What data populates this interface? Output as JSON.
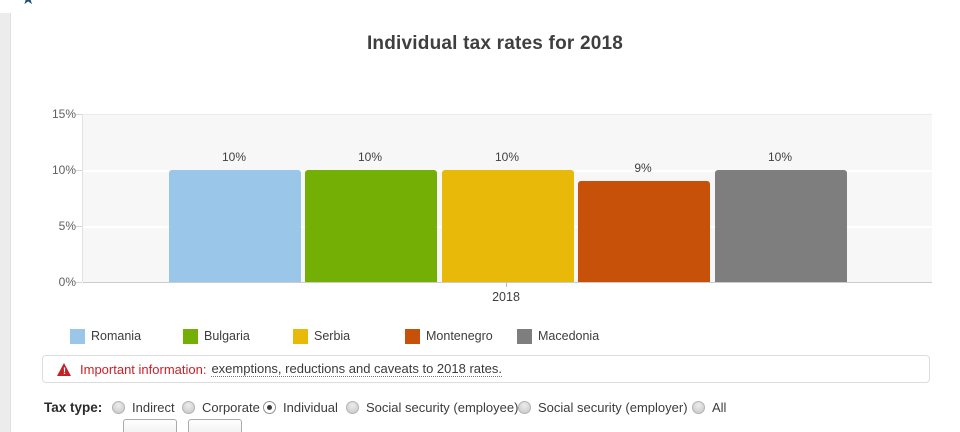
{
  "header": {
    "star_icon": "star"
  },
  "chart_data": {
    "type": "bar",
    "title": "Individual tax rates for 2018",
    "categories": [
      "2018"
    ],
    "series": [
      {
        "name": "Romania",
        "values": [
          10
        ],
        "label": "10%",
        "color": "#9ac6e9"
      },
      {
        "name": "Bulgaria",
        "values": [
          10
        ],
        "label": "10%",
        "color": "#74af06"
      },
      {
        "name": "Serbia",
        "values": [
          10
        ],
        "label": "10%",
        "color": "#e8b908"
      },
      {
        "name": "Montenegro",
        "values": [
          9
        ],
        "label": "9%",
        "color": "#c75108"
      },
      {
        "name": "Macedonia",
        "values": [
          10
        ],
        "label": "10%",
        "color": "#7e7e7e"
      }
    ],
    "ylim": [
      0,
      15
    ],
    "yticks": [
      {
        "value": 0,
        "label": "0%"
      },
      {
        "value": 5,
        "label": "5%"
      },
      {
        "value": 10,
        "label": "10%"
      },
      {
        "value": 15,
        "label": "15%"
      }
    ],
    "grid": true,
    "legend_position": "bottom",
    "plot_background": "#f7f7f7"
  },
  "warning": {
    "prefix": "Important information:",
    "link_text": "exemptions, reductions and caveats to 2018 rates.",
    "accent_color": "#cb2026"
  },
  "tax_type": {
    "label": "Tax type:",
    "options": [
      {
        "label": "Indirect",
        "selected": false
      },
      {
        "label": "Corporate",
        "selected": false
      },
      {
        "label": "Individual",
        "selected": true
      },
      {
        "label": "Social security (employee)",
        "selected": false
      },
      {
        "label": "Social security (employer)",
        "selected": false
      },
      {
        "label": "All",
        "selected": false
      }
    ]
  }
}
